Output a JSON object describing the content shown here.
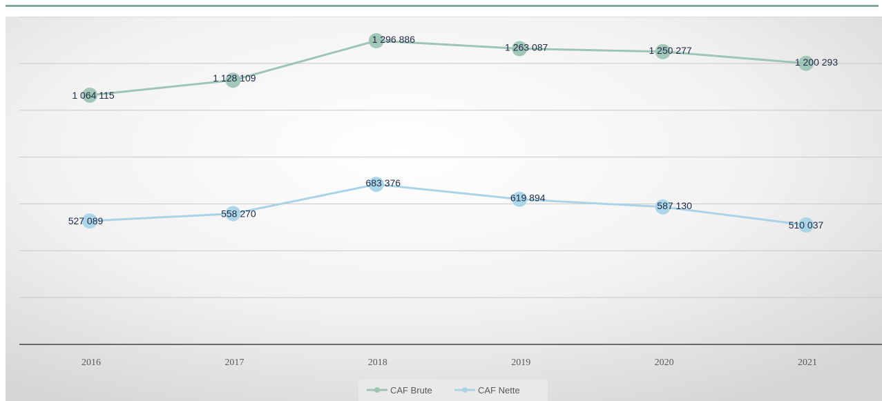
{
  "chart_data": {
    "type": "line",
    "title": "",
    "xlabel": "",
    "ylabel": "",
    "x": [
      "2016",
      "2017",
      "2018",
      "2019",
      "2020",
      "2021"
    ],
    "ylim": [
      0,
      1400000
    ],
    "grid": true,
    "legend_position": "bottom",
    "series": [
      {
        "name": "CAF Brute",
        "color": "#9ec4b4",
        "values": [
          1064115,
          1128109,
          1296886,
          1263087,
          1250277,
          1200293
        ],
        "labels": [
          "1 064 115",
          "1 128 109",
          "1 296 886",
          "1 263 087",
          "1 250 277",
          "1 200 293"
        ]
      },
      {
        "name": "CAF Nette",
        "color": "#a9d4e8",
        "values": [
          527089,
          558270,
          683376,
          619894,
          587130,
          510037
        ],
        "labels": [
          "527 089",
          "558 270",
          "683 376",
          "619 894",
          "587 130",
          "510 037"
        ]
      }
    ]
  }
}
